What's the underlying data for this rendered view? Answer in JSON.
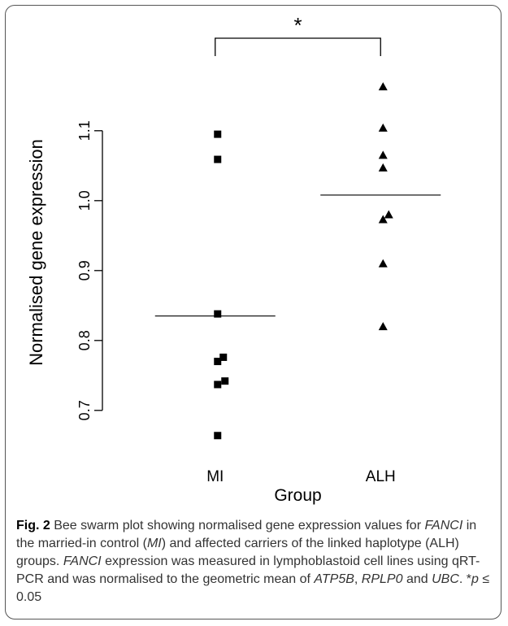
{
  "chart_data": {
    "type": "scatter",
    "subtype": "bee swarm",
    "ylabel": "Normalised gene expression",
    "xlabel": "Group",
    "categories": [
      "MI",
      "ALH"
    ],
    "ylim": [
      0.63,
      1.18
    ],
    "yticks": [
      "0.7",
      "0.8",
      "0.9",
      "1.0",
      "1.1"
    ],
    "grid": false,
    "series": [
      {
        "name": "MI",
        "marker": "square",
        "points": [
          {
            "y": 1.095,
            "offset": 0.03
          },
          {
            "y": 1.059,
            "offset": 0.03
          },
          {
            "y": 0.838,
            "offset": 0.03
          },
          {
            "y": 0.776,
            "offset": 0.1
          },
          {
            "y": 0.77,
            "offset": 0.03
          },
          {
            "y": 0.742,
            "offset": 0.12
          },
          {
            "y": 0.737,
            "offset": 0.03
          },
          {
            "y": 0.664,
            "offset": 0.03
          }
        ],
        "mean": 0.835
      },
      {
        "name": "ALH",
        "marker": "triangle",
        "points": [
          {
            "y": 1.163,
            "offset": 0.03
          },
          {
            "y": 1.104,
            "offset": 0.03
          },
          {
            "y": 1.065,
            "offset": 0.03
          },
          {
            "y": 1.047,
            "offset": 0.03
          },
          {
            "y": 0.98,
            "offset": 0.1
          },
          {
            "y": 0.973,
            "offset": 0.03
          },
          {
            "y": 0.91,
            "offset": 0.03
          },
          {
            "y": 0.82,
            "offset": 0.03
          }
        ],
        "mean": 1.008
      }
    ],
    "annotation": {
      "text": "*",
      "between": [
        "MI",
        "ALH"
      ]
    }
  },
  "caption": {
    "label": "Fig. 2",
    "parts": [
      {
        "text": " Bee swarm plot showing normalised gene expression values for "
      },
      {
        "text": "FANCI",
        "italic": true
      },
      {
        "text": " in the married-in control ("
      },
      {
        "text": "MI",
        "italic": true
      },
      {
        "text": ") and affected carriers of the linked haplotype (ALH) groups. "
      },
      {
        "text": "FANCI",
        "italic": true
      },
      {
        "text": " expression was measured in lymphoblastoid cell lines using qRT-PCR and was normalised to the geometric mean of "
      },
      {
        "text": "ATP5B",
        "italic": true
      },
      {
        "text": ", "
      },
      {
        "text": "RPLP0",
        "italic": true
      },
      {
        "text": " and "
      },
      {
        "text": "UBC",
        "italic": true
      },
      {
        "text": ". *"
      },
      {
        "text": "p",
        "italic": true
      },
      {
        "text": " ≤ 0.05"
      }
    ]
  },
  "colors": {
    "marker": "#000000",
    "frame": "#555555",
    "caption_text": "#333333"
  }
}
